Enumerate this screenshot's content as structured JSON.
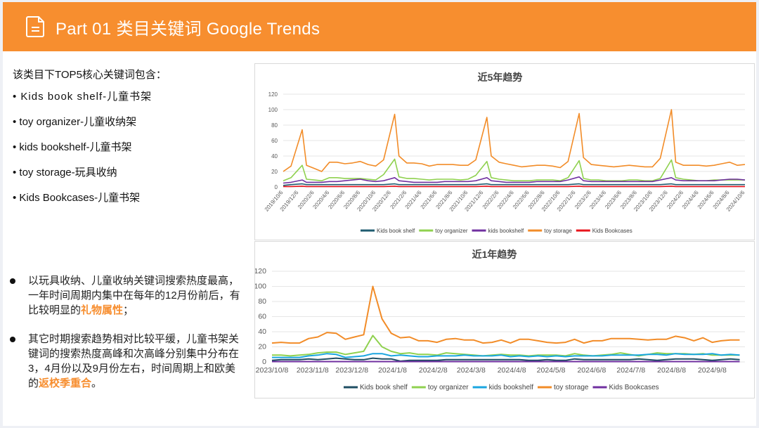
{
  "header": {
    "title": "Part 01 类目关键词 Google Trends",
    "icon": "document-icon"
  },
  "left": {
    "intro": "该类目下TOP5核心关键词包含：",
    "keywords": [
      "• Kids book shelf-儿童书架",
      "• toy organizer-儿童收纳架",
      "• kids bookshelf-儿童书架",
      "• toy storage-玩具收纳",
      "• Kids Bookcases-儿童书架"
    ],
    "notes": [
      {
        "text": "以玩具收纳、儿童收纳关键词搜索热度最高，一年时间周期内集中在每年的12月份前后，有比较明显的",
        "highlight": "礼物属性",
        "tail": "；"
      },
      {
        "text": "其它时期搜索趋势相对比较平缓，儿童书架关键词的搜索热度高峰和次高峰分别集中分布在3，4月份以及9月份左右，时间周期上和欧美的",
        "highlight": "返校季重合",
        "tail": "。"
      }
    ],
    "highlight_color": "#f78e2f"
  },
  "chart_data": [
    {
      "type": "line",
      "title": "近5年趋势",
      "ylim": [
        0,
        120
      ],
      "yticks": [
        "0",
        "20",
        "40",
        "60",
        "80",
        "100",
        "120"
      ],
      "grid": true,
      "legend": "bottom",
      "xlim": [
        "2019/10/6",
        "2024/10/6"
      ],
      "xticks": [
        "2019/10/6",
        "2019/12/6",
        "2020/2/6",
        "2020/4/6",
        "2020/6/6",
        "2020/8/6",
        "2020/10/6",
        "2020/12/6",
        "2021/2/6",
        "2021/4/6",
        "2021/6/6",
        "2021/8/6",
        "2021/10/6",
        "2021/12/6",
        "2022/2/6",
        "2022/4/6",
        "2022/6/6",
        "2022/8/6",
        "2022/10/6",
        "2022/12/6",
        "2023/2/6",
        "2023/4/6",
        "2023/6/6",
        "2023/8/6",
        "2023/10/6",
        "2023/12/6",
        "2024/2/6",
        "2024/4/6",
        "2024/6/6",
        "2024/8/6",
        "2024/10/6"
      ],
      "x": [
        "2019/10/6",
        "2019/11/6",
        "2019/12/20",
        "2020/1/6",
        "2020/2/6",
        "2020/3/6",
        "2020/4/6",
        "2020/5/6",
        "2020/6/6",
        "2020/7/6",
        "2020/8/6",
        "2020/9/6",
        "2020/10/6",
        "2020/11/6",
        "2020/12/20",
        "2021/1/6",
        "2021/2/6",
        "2021/3/6",
        "2021/4/6",
        "2021/5/6",
        "2021/6/6",
        "2021/7/6",
        "2021/8/6",
        "2021/9/6",
        "2021/10/6",
        "2021/11/6",
        "2021/12/20",
        "2022/1/6",
        "2022/2/6",
        "2022/3/6",
        "2022/4/6",
        "2022/5/6",
        "2022/6/6",
        "2022/7/6",
        "2022/8/6",
        "2022/9/6",
        "2022/10/6",
        "2022/11/6",
        "2022/12/20",
        "2023/1/6",
        "2023/2/6",
        "2023/3/6",
        "2023/4/6",
        "2023/5/6",
        "2023/6/6",
        "2023/7/6",
        "2023/8/6",
        "2023/9/6",
        "2023/10/6",
        "2023/11/6",
        "2023/12/20",
        "2024/1/6",
        "2024/2/6",
        "2024/3/6",
        "2024/4/6",
        "2024/5/6",
        "2024/6/6",
        "2024/7/6",
        "2024/8/6",
        "2024/9/6",
        "2024/10/6"
      ],
      "series": [
        {
          "name": "Kids book shelf",
          "color": "#1f5c70",
          "values": [
            2,
            3,
            4,
            3,
            3,
            3,
            3,
            3,
            3,
            3,
            3,
            3,
            3,
            3,
            4,
            3,
            3,
            3,
            3,
            3,
            3,
            3,
            3,
            3,
            3,
            3,
            4,
            3,
            3,
            3,
            3,
            3,
            3,
            3,
            3,
            3,
            3,
            3,
            4,
            3,
            3,
            3,
            3,
            3,
            3,
            3,
            3,
            3,
            3,
            3,
            4,
            3,
            3,
            3,
            3,
            3,
            3,
            3,
            3,
            3,
            3
          ]
        },
        {
          "name": "toy organizer",
          "color": "#8fd14f",
          "values": [
            8,
            12,
            28,
            10,
            9,
            8,
            12,
            12,
            11,
            11,
            11,
            10,
            9,
            16,
            36,
            13,
            11,
            11,
            10,
            9,
            10,
            10,
            10,
            9,
            10,
            15,
            33,
            12,
            10,
            9,
            8,
            8,
            8,
            9,
            9,
            9,
            8,
            12,
            34,
            11,
            9,
            9,
            8,
            8,
            8,
            9,
            9,
            8,
            8,
            11,
            35,
            12,
            10,
            9,
            8,
            8,
            9,
            9,
            9,
            9,
            9
          ]
        },
        {
          "name": "kids bookshelf",
          "color": "#7030a0",
          "values": [
            5,
            6,
            9,
            6,
            6,
            6,
            7,
            7,
            8,
            9,
            10,
            8,
            7,
            8,
            12,
            8,
            7,
            6,
            6,
            6,
            6,
            7,
            7,
            7,
            7,
            8,
            12,
            8,
            7,
            6,
            6,
            6,
            6,
            7,
            7,
            7,
            7,
            9,
            13,
            8,
            7,
            7,
            7,
            7,
            7,
            7,
            7,
            7,
            7,
            9,
            12,
            9,
            8,
            8,
            8,
            8,
            8,
            9,
            10,
            10,
            9
          ]
        },
        {
          "name": "toy storage",
          "color": "#f28c28",
          "values": [
            20,
            27,
            74,
            28,
            24,
            20,
            32,
            32,
            30,
            31,
            33,
            29,
            27,
            35,
            94,
            40,
            31,
            31,
            30,
            27,
            29,
            29,
            29,
            28,
            28,
            35,
            90,
            40,
            32,
            30,
            28,
            26,
            27,
            28,
            28,
            27,
            25,
            33,
            95,
            38,
            29,
            28,
            27,
            26,
            27,
            28,
            27,
            26,
            26,
            37,
            100,
            32,
            28,
            28,
            28,
            27,
            28,
            30,
            32,
            28,
            29
          ]
        },
        {
          "name": "Kids Bookcases",
          "color": "#e8141c",
          "values": [
            0.5,
            0.5,
            1,
            0.5,
            0.5,
            0.5,
            0.5,
            0.5,
            0.5,
            0.5,
            0.5,
            0.5,
            0.5,
            0.5,
            1,
            0.5,
            0.5,
            0.5,
            0.5,
            0.5,
            0.5,
            0.5,
            0.5,
            0.5,
            0.5,
            0.5,
            1,
            0.5,
            0.5,
            0.5,
            0.5,
            0.5,
            0.5,
            0.5,
            0.5,
            0.5,
            0.5,
            0.5,
            1,
            0.5,
            0.5,
            0.5,
            0.5,
            0.5,
            0.5,
            0.5,
            0.5,
            0.5,
            0.5,
            0.5,
            1,
            0.5,
            0.5,
            0.5,
            0.5,
            0.5,
            0.5,
            0.5,
            0.5,
            0.5,
            0.5
          ]
        }
      ]
    },
    {
      "type": "line",
      "title": "近1年趋势",
      "ylim": [
        0,
        120
      ],
      "yticks": [
        "0",
        "20",
        "40",
        "60",
        "80",
        "100",
        "120"
      ],
      "grid": true,
      "legend": "bottom",
      "xlim": [
        "2023/10/8",
        "2024/10/3"
      ],
      "xticks": [
        "2023/10/8",
        "2023/11/8",
        "2023/12/8",
        "2024/1/8",
        "2024/2/8",
        "2024/3/8",
        "2024/4/8",
        "2024/5/8",
        "2024/6/8",
        "2024/7/8",
        "2024/8/8",
        "2024/9/8"
      ],
      "x": [
        "2023/10/8",
        "2023/10/15",
        "2023/10/22",
        "2023/10/29",
        "2023/11/5",
        "2023/11/12",
        "2023/11/19",
        "2023/11/26",
        "2023/12/3",
        "2023/12/10",
        "2023/12/17",
        "2023/12/24",
        "2023/12/31",
        "2024/1/7",
        "2024/1/14",
        "2024/1/21",
        "2024/1/28",
        "2024/2/4",
        "2024/2/11",
        "2024/2/18",
        "2024/2/25",
        "2024/3/3",
        "2024/3/10",
        "2024/3/17",
        "2024/3/24",
        "2024/3/31",
        "2024/4/7",
        "2024/4/14",
        "2024/4/21",
        "2024/4/28",
        "2024/5/5",
        "2024/5/12",
        "2024/5/19",
        "2024/5/26",
        "2024/6/2",
        "2024/6/9",
        "2024/6/16",
        "2024/6/23",
        "2024/6/30",
        "2024/7/7",
        "2024/7/14",
        "2024/7/21",
        "2024/7/28",
        "2024/8/4",
        "2024/8/11",
        "2024/8/18",
        "2024/8/25",
        "2024/9/1",
        "2024/9/8",
        "2024/9/15",
        "2024/9/22",
        "2024/9/29"
      ],
      "series": [
        {
          "name": "Kids book shelf",
          "color": "#1f4e63",
          "values": [
            2,
            3,
            3,
            3,
            4,
            3,
            4,
            5,
            4,
            3,
            3,
            5,
            4,
            4,
            1,
            2,
            2,
            2,
            2,
            3,
            3,
            3,
            3,
            3,
            3,
            3,
            3,
            3,
            2,
            2,
            3,
            2,
            2,
            4,
            3,
            3,
            3,
            3,
            3,
            3,
            4,
            3,
            2,
            3,
            4,
            4,
            4,
            3,
            2,
            3,
            4,
            3
          ]
        },
        {
          "name": "toy organizer",
          "color": "#8fd14f",
          "values": [
            9,
            9,
            8,
            9,
            10,
            12,
            13,
            13,
            10,
            12,
            14,
            35,
            20,
            14,
            11,
            12,
            10,
            10,
            9,
            12,
            11,
            10,
            9,
            8,
            9,
            10,
            9,
            9,
            8,
            9,
            9,
            9,
            8,
            11,
            9,
            8,
            9,
            10,
            12,
            10,
            8,
            10,
            12,
            11,
            11,
            11,
            10,
            11,
            9,
            9,
            9,
            9
          ]
        },
        {
          "name": "kids bookshelf",
          "color": "#1aa6e0",
          "values": [
            6,
            6,
            6,
            6,
            8,
            9,
            11,
            10,
            6,
            7,
            8,
            11,
            11,
            8,
            9,
            8,
            7,
            7,
            8,
            8,
            8,
            9,
            8,
            8,
            8,
            9,
            7,
            8,
            7,
            8,
            7,
            8,
            7,
            8,
            8,
            8,
            8,
            9,
            9,
            9,
            9,
            10,
            10,
            9,
            11,
            10,
            10,
            10,
            11,
            9,
            10,
            9
          ]
        },
        {
          "name": "toy storage",
          "color": "#f28c28",
          "values": [
            25,
            26,
            25,
            25,
            31,
            33,
            39,
            38,
            30,
            33,
            36,
            100,
            57,
            38,
            32,
            33,
            28,
            28,
            26,
            30,
            31,
            29,
            29,
            25,
            26,
            29,
            25,
            30,
            30,
            28,
            26,
            25,
            26,
            30,
            25,
            28,
            28,
            31,
            31,
            31,
            30,
            29,
            30,
            30,
            34,
            32,
            28,
            32,
            26,
            28,
            29,
            29
          ]
        },
        {
          "name": "Kids Bookcases",
          "color": "#7030a0",
          "values": [
            0.5,
            0.5,
            0.5,
            0.5,
            0.5,
            0.5,
            0.5,
            0.5,
            0.5,
            0.5,
            0.5,
            0.5,
            0.5,
            0.5,
            0.5,
            0.5,
            0.5,
            0.5,
            0.5,
            0.5,
            0.5,
            0.5,
            0.5,
            0.5,
            0.5,
            0.5,
            0.5,
            0.5,
            0.5,
            0.5,
            0.5,
            0.5,
            0.5,
            0.5,
            0.5,
            0.5,
            0.5,
            0.5,
            0.5,
            0.5,
            0.5,
            0.5,
            0.5,
            0.5,
            0.5,
            0.5,
            0.5,
            0.5,
            0.5,
            0.5,
            0.5,
            0.5
          ]
        }
      ]
    }
  ]
}
